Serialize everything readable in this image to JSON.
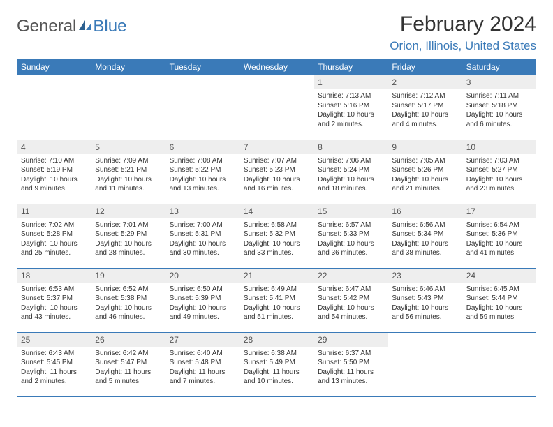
{
  "logo": {
    "general": "General",
    "blue": "Blue"
  },
  "title": "February 2024",
  "location": "Orion, Illinois, United States",
  "colors": {
    "accent": "#3a7ab8",
    "header_text": "#ffffff",
    "day_bg": "#eeeeee",
    "text": "#333333",
    "logo_gray": "#555555"
  },
  "weekdays": [
    "Sunday",
    "Monday",
    "Tuesday",
    "Wednesday",
    "Thursday",
    "Friday",
    "Saturday"
  ],
  "weeks": [
    [
      null,
      null,
      null,
      null,
      {
        "n": "1",
        "sr": "7:13 AM",
        "ss": "5:16 PM",
        "dl": "10 hours and 2 minutes."
      },
      {
        "n": "2",
        "sr": "7:12 AM",
        "ss": "5:17 PM",
        "dl": "10 hours and 4 minutes."
      },
      {
        "n": "3",
        "sr": "7:11 AM",
        "ss": "5:18 PM",
        "dl": "10 hours and 6 minutes."
      }
    ],
    [
      {
        "n": "4",
        "sr": "7:10 AM",
        "ss": "5:19 PM",
        "dl": "10 hours and 9 minutes."
      },
      {
        "n": "5",
        "sr": "7:09 AM",
        "ss": "5:21 PM",
        "dl": "10 hours and 11 minutes."
      },
      {
        "n": "6",
        "sr": "7:08 AM",
        "ss": "5:22 PM",
        "dl": "10 hours and 13 minutes."
      },
      {
        "n": "7",
        "sr": "7:07 AM",
        "ss": "5:23 PM",
        "dl": "10 hours and 16 minutes."
      },
      {
        "n": "8",
        "sr": "7:06 AM",
        "ss": "5:24 PM",
        "dl": "10 hours and 18 minutes."
      },
      {
        "n": "9",
        "sr": "7:05 AM",
        "ss": "5:26 PM",
        "dl": "10 hours and 21 minutes."
      },
      {
        "n": "10",
        "sr": "7:03 AM",
        "ss": "5:27 PM",
        "dl": "10 hours and 23 minutes."
      }
    ],
    [
      {
        "n": "11",
        "sr": "7:02 AM",
        "ss": "5:28 PM",
        "dl": "10 hours and 25 minutes."
      },
      {
        "n": "12",
        "sr": "7:01 AM",
        "ss": "5:29 PM",
        "dl": "10 hours and 28 minutes."
      },
      {
        "n": "13",
        "sr": "7:00 AM",
        "ss": "5:31 PM",
        "dl": "10 hours and 30 minutes."
      },
      {
        "n": "14",
        "sr": "6:58 AM",
        "ss": "5:32 PM",
        "dl": "10 hours and 33 minutes."
      },
      {
        "n": "15",
        "sr": "6:57 AM",
        "ss": "5:33 PM",
        "dl": "10 hours and 36 minutes."
      },
      {
        "n": "16",
        "sr": "6:56 AM",
        "ss": "5:34 PM",
        "dl": "10 hours and 38 minutes."
      },
      {
        "n": "17",
        "sr": "6:54 AM",
        "ss": "5:36 PM",
        "dl": "10 hours and 41 minutes."
      }
    ],
    [
      {
        "n": "18",
        "sr": "6:53 AM",
        "ss": "5:37 PM",
        "dl": "10 hours and 43 minutes."
      },
      {
        "n": "19",
        "sr": "6:52 AM",
        "ss": "5:38 PM",
        "dl": "10 hours and 46 minutes."
      },
      {
        "n": "20",
        "sr": "6:50 AM",
        "ss": "5:39 PM",
        "dl": "10 hours and 49 minutes."
      },
      {
        "n": "21",
        "sr": "6:49 AM",
        "ss": "5:41 PM",
        "dl": "10 hours and 51 minutes."
      },
      {
        "n": "22",
        "sr": "6:47 AM",
        "ss": "5:42 PM",
        "dl": "10 hours and 54 minutes."
      },
      {
        "n": "23",
        "sr": "6:46 AM",
        "ss": "5:43 PM",
        "dl": "10 hours and 56 minutes."
      },
      {
        "n": "24",
        "sr": "6:45 AM",
        "ss": "5:44 PM",
        "dl": "10 hours and 59 minutes."
      }
    ],
    [
      {
        "n": "25",
        "sr": "6:43 AM",
        "ss": "5:45 PM",
        "dl": "11 hours and 2 minutes."
      },
      {
        "n": "26",
        "sr": "6:42 AM",
        "ss": "5:47 PM",
        "dl": "11 hours and 5 minutes."
      },
      {
        "n": "27",
        "sr": "6:40 AM",
        "ss": "5:48 PM",
        "dl": "11 hours and 7 minutes."
      },
      {
        "n": "28",
        "sr": "6:38 AM",
        "ss": "5:49 PM",
        "dl": "11 hours and 10 minutes."
      },
      {
        "n": "29",
        "sr": "6:37 AM",
        "ss": "5:50 PM",
        "dl": "11 hours and 13 minutes."
      },
      null,
      null
    ]
  ],
  "labels": {
    "sunrise": "Sunrise: ",
    "sunset": "Sunset: ",
    "daylight": "Daylight: "
  }
}
